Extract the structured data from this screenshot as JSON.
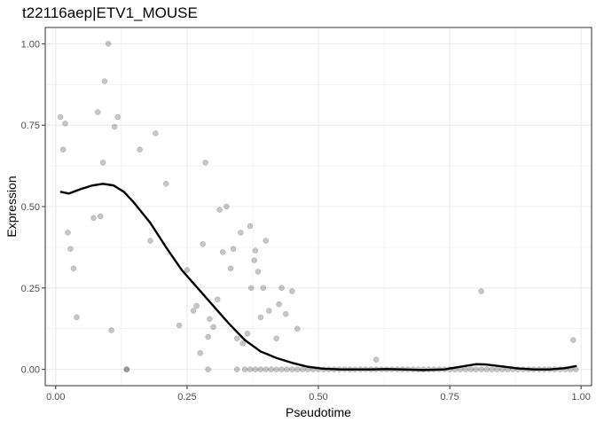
{
  "chart_data": {
    "type": "scatter",
    "title": "t22116aep|ETV1_MOUSE",
    "xlabel": "Pseudotime",
    "ylabel": "Expression",
    "xlim": [
      -0.02,
      1.02
    ],
    "ylim": [
      -0.05,
      1.05
    ],
    "x_ticks": [
      0.0,
      0.25,
      0.5,
      0.75,
      1.0
    ],
    "x_tick_labels": [
      "0.00",
      "0.25",
      "0.50",
      "0.75",
      "1.00"
    ],
    "y_ticks": [
      0.0,
      0.25,
      0.5,
      0.75,
      1.0
    ],
    "y_tick_labels": [
      "0.00",
      "0.25",
      "0.50",
      "0.75",
      "1.00"
    ],
    "grid": true,
    "legend": "none",
    "colors": {
      "points": "#000000",
      "points_opacity": 0.22,
      "smooth_line": "#000000",
      "grid": "#ebebeb",
      "panel_border": "#333333"
    },
    "series": [
      {
        "kind": "points",
        "x": [
          0.009,
          0.014,
          0.018,
          0.023,
          0.028,
          0.034,
          0.04,
          0.072,
          0.08,
          0.085,
          0.09,
          0.093,
          0.1,
          0.106,
          0.112,
          0.118,
          0.135,
          0.16,
          0.18,
          0.19,
          0.21,
          0.235,
          0.25,
          0.262,
          0.268,
          0.275,
          0.28,
          0.285,
          0.29,
          0.293,
          0.3,
          0.308,
          0.312,
          0.318,
          0.325,
          0.333,
          0.338,
          0.345,
          0.352,
          0.356,
          0.365,
          0.37,
          0.372,
          0.378,
          0.38,
          0.385,
          0.39,
          0.395,
          0.4,
          0.406,
          0.42,
          0.425,
          0.43,
          0.438,
          0.45,
          0.46,
          0.61,
          0.81,
          0.985,
          0.135,
          0.29,
          0.345,
          0.36,
          0.37,
          0.38,
          0.39,
          0.4,
          0.41,
          0.42,
          0.43,
          0.44,
          0.45,
          0.46,
          0.47,
          0.48,
          0.49,
          0.5,
          0.51,
          0.52,
          0.53,
          0.54,
          0.55,
          0.56,
          0.57,
          0.58,
          0.59,
          0.6,
          0.61,
          0.62,
          0.63,
          0.64,
          0.65,
          0.66,
          0.67,
          0.68,
          0.69,
          0.7,
          0.71,
          0.72,
          0.73,
          0.74,
          0.75,
          0.76,
          0.77,
          0.78,
          0.79,
          0.8,
          0.81,
          0.82,
          0.83,
          0.84,
          0.85,
          0.86,
          0.87,
          0.88,
          0.89,
          0.9,
          0.91,
          0.92,
          0.93,
          0.94,
          0.95,
          0.96,
          0.97,
          0.98,
          0.99
        ],
        "y": [
          0.775,
          0.675,
          0.755,
          0.42,
          0.37,
          0.31,
          0.16,
          0.465,
          0.79,
          0.47,
          0.635,
          0.885,
          1.0,
          0.12,
          0.745,
          0.775,
          0.0,
          0.675,
          0.395,
          0.725,
          0.57,
          0.135,
          0.305,
          0.18,
          0.195,
          0.05,
          0.385,
          0.635,
          0.1,
          0.155,
          0.13,
          0.215,
          0.49,
          0.36,
          0.5,
          0.31,
          0.37,
          0.095,
          0.42,
          0.08,
          0.11,
          0.44,
          0.25,
          0.335,
          0.365,
          0.3,
          0.16,
          0.25,
          0.395,
          0.18,
          0.095,
          0.2,
          0.25,
          0.17,
          0.24,
          0.125,
          0.03,
          0.24,
          0.09,
          0.0,
          0.0,
          0.0,
          0.0,
          0.0,
          0.0,
          0.0,
          0.0,
          0.0,
          0.0,
          0.0,
          0.0,
          0.0,
          0.0,
          0.0,
          0.0,
          0.0,
          0.0,
          0.0,
          0.0,
          0.0,
          0.0,
          0.0,
          0.0,
          0.0,
          0.0,
          0.0,
          0.0,
          0.0,
          0.0,
          0.0,
          0.0,
          0.0,
          0.0,
          0.0,
          0.0,
          0.0,
          0.0,
          0.0,
          0.0,
          0.0,
          0.0,
          0.0,
          0.0,
          0.0,
          0.0,
          0.0,
          0.0,
          0.0,
          0.0,
          0.0,
          0.0,
          0.0,
          0.0,
          0.0,
          0.0,
          0.0,
          0.0,
          0.0,
          0.0,
          0.0,
          0.0,
          0.0,
          0.0,
          0.0,
          0.0,
          0.0
        ]
      },
      {
        "kind": "smooth-line",
        "x": [
          0.01,
          0.025,
          0.05,
          0.07,
          0.09,
          0.11,
          0.13,
          0.15,
          0.18,
          0.21,
          0.24,
          0.27,
          0.3,
          0.33,
          0.36,
          0.39,
          0.42,
          0.45,
          0.48,
          0.51,
          0.54,
          0.57,
          0.6,
          0.63,
          0.66,
          0.7,
          0.74,
          0.77,
          0.8,
          0.82,
          0.85,
          0.88,
          0.91,
          0.94,
          0.97,
          0.99
        ],
        "y": [
          0.545,
          0.54,
          0.555,
          0.565,
          0.57,
          0.565,
          0.545,
          0.51,
          0.45,
          0.375,
          0.305,
          0.25,
          0.195,
          0.14,
          0.09,
          0.055,
          0.035,
          0.02,
          0.008,
          0.002,
          0.0,
          0.0,
          0.0,
          0.001,
          0.0,
          -0.002,
          0.0,
          0.008,
          0.016,
          0.015,
          0.009,
          0.003,
          0.0,
          0.0,
          0.004,
          0.01
        ]
      }
    ]
  }
}
